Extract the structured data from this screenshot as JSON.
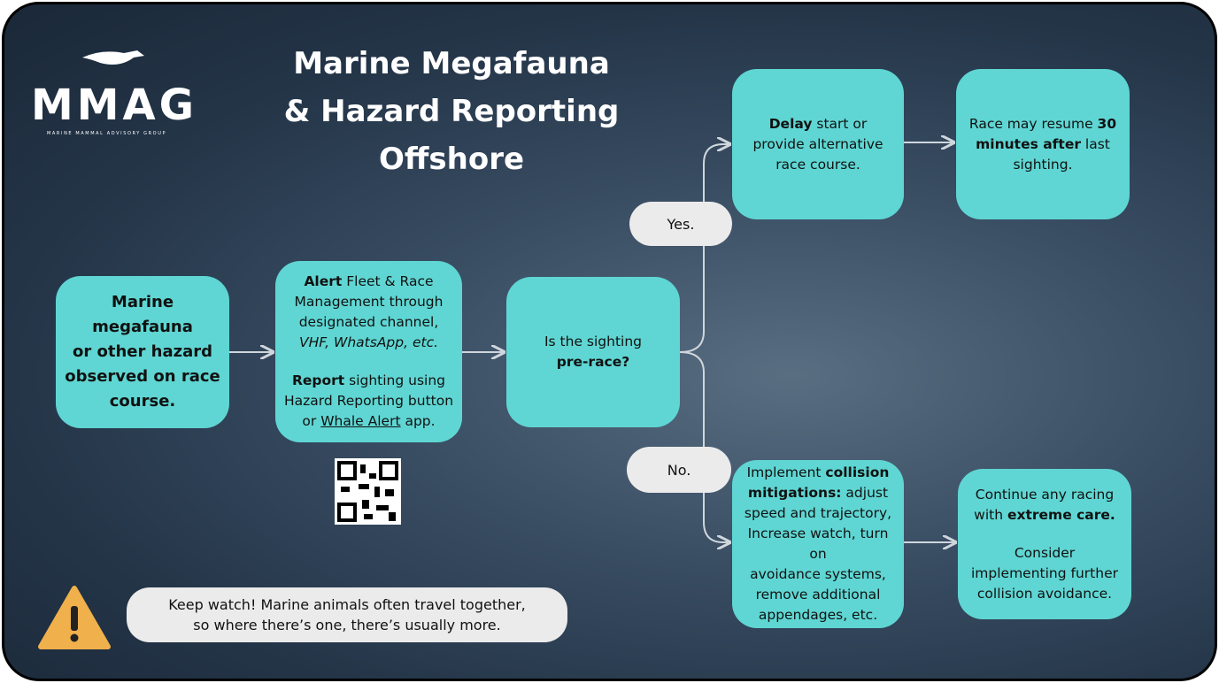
{
  "logo": {
    "name": "MMAG",
    "subtitle": "MARINE MAMMAL ADVISORY GROUP"
  },
  "title": [
    "Marine Megafauna",
    "& Hazard Reporting",
    "Offshore"
  ],
  "nodes": [
    {
      "paragraphs": [
        [
          [
            {
              "text": "Marine megafauna",
              "style": "bold"
            }
          ],
          [
            {
              "text": "or other hazard",
              "style": "bold"
            }
          ],
          [
            {
              "text": "observed on race",
              "style": "bold"
            }
          ],
          [
            {
              "text": "course.",
              "style": "bold"
            }
          ]
        ]
      ]
    },
    {
      "paragraphs": [
        [
          [
            {
              "text": "Alert",
              "style": "bold"
            },
            {
              "text": " Fleet & Race"
            }
          ],
          [
            {
              "text": "Management through"
            }
          ],
          [
            {
              "text": "designated channel,"
            }
          ],
          [
            {
              "text": "VHF, WhatsApp, etc.",
              "style": "italic"
            }
          ]
        ],
        [
          [
            {
              "text": "Report",
              "style": "bold"
            },
            {
              "text": " sighting using"
            }
          ],
          [
            {
              "text": "Hazard Reporting button"
            }
          ],
          [
            {
              "text": "or "
            },
            {
              "text": "Whale Alert",
              "style": "underline"
            },
            {
              "text": " app."
            }
          ]
        ]
      ]
    },
    {
      "paragraphs": [
        [
          [
            {
              "text": "Is the sighting"
            }
          ],
          [
            {
              "text": "pre-race?",
              "style": "bold"
            }
          ]
        ]
      ]
    },
    {
      "paragraphs": [
        [
          [
            {
              "text": "Delay",
              "style": "bold"
            },
            {
              "text": " start or"
            }
          ],
          [
            {
              "text": "provide alternative"
            }
          ],
          [
            {
              "text": "race course."
            }
          ]
        ]
      ]
    },
    {
      "paragraphs": [
        [
          [
            {
              "text": "Race may resume "
            },
            {
              "text": "30",
              "style": "bold"
            }
          ],
          [
            {
              "text": "minutes after",
              "style": "bold"
            },
            {
              "text": " last"
            }
          ],
          [
            {
              "text": "sighting."
            }
          ]
        ]
      ]
    },
    {
      "paragraphs": [
        [
          [
            {
              "text": "Implement "
            },
            {
              "text": "collision",
              "style": "bold"
            }
          ],
          [
            {
              "text": "mitigations:",
              "style": "bold"
            },
            {
              "text": " adjust"
            }
          ],
          [
            {
              "text": "speed and trajectory,"
            }
          ],
          [
            {
              "text": "Increase watch, turn on"
            }
          ],
          [
            {
              "text": "avoidance systems,"
            }
          ],
          [
            {
              "text": "remove additional"
            }
          ],
          [
            {
              "text": "appendages, etc."
            }
          ]
        ]
      ]
    },
    {
      "paragraphs": [
        [
          [
            {
              "text": "Continue any racing"
            }
          ],
          [
            {
              "text": "with "
            },
            {
              "text": "extreme care.",
              "style": "bold"
            }
          ]
        ],
        [
          [
            {
              "text": "Consider"
            }
          ],
          [
            {
              "text": "implementing further"
            }
          ],
          [
            {
              "text": "collision avoidance."
            }
          ]
        ]
      ]
    }
  ],
  "branches": {
    "yes": "Yes.",
    "no": "No."
  },
  "note": [
    "Keep watch! Marine animals often travel together,",
    "so where there’s one, there’s usually more."
  ]
}
